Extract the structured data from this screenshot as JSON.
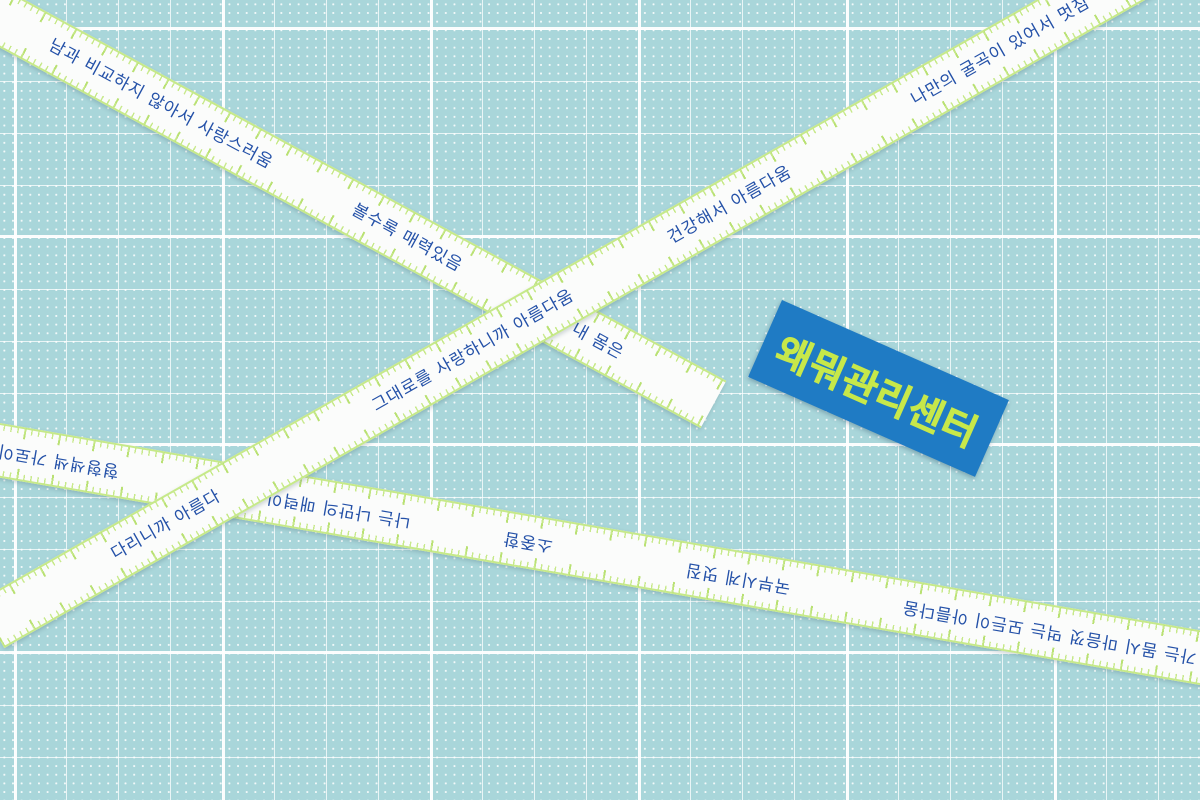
{
  "ribbon_a": {
    "texts": [
      "남과 비교하지 않아서 사랑스러움",
      "볼수록 매력있음",
      "내 몸은"
    ]
  },
  "ribbon_b": {
    "texts": [
      "다리니까 아름다",
      "그대로를 사랑하니까 아름다움",
      "건강해서 아름다움",
      "나만의 굴곡이 있어서 멋짐"
    ]
  },
  "ribbon_c": {
    "texts": [
      "가는 몸시 마음껏 먹는 모든이 아름다움",
      "국부시계 멋짐",
      "소중함",
      "나는 나만의 매력이 있음",
      "형형색색 가로이"
    ]
  },
  "tag": {
    "label": "왜뭐관리센터",
    "color": "#1f7bc4",
    "text_color": "#c7e84a"
  }
}
